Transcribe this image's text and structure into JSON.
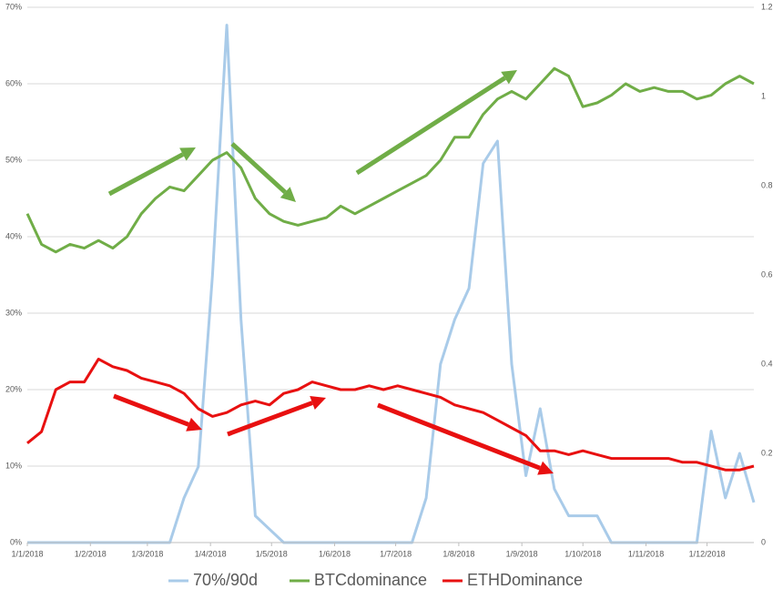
{
  "chart_data": {
    "type": "line",
    "x": [
      "2018-01-01",
      "2018-01-08",
      "2018-01-15",
      "2018-01-22",
      "2018-01-29",
      "2018-02-05",
      "2018-02-12",
      "2018-02-19",
      "2018-02-26",
      "2018-03-05",
      "2018-03-12",
      "2018-03-19",
      "2018-03-26",
      "2018-04-02",
      "2018-04-09",
      "2018-04-16",
      "2018-04-23",
      "2018-04-30",
      "2018-05-07",
      "2018-05-14",
      "2018-05-21",
      "2018-05-28",
      "2018-06-04",
      "2018-06-11",
      "2018-06-18",
      "2018-06-25",
      "2018-07-02",
      "2018-07-09",
      "2018-07-16",
      "2018-07-23",
      "2018-07-30",
      "2018-08-06",
      "2018-08-13",
      "2018-08-20",
      "2018-08-27",
      "2018-09-03",
      "2018-09-10",
      "2018-09-17",
      "2018-09-24",
      "2018-10-01",
      "2018-10-08",
      "2018-10-15",
      "2018-10-22",
      "2018-10-29",
      "2018-11-05",
      "2018-11-12",
      "2018-11-19",
      "2018-11-26",
      "2018-12-03",
      "2018-12-10",
      "2018-12-17",
      "2018-12-24"
    ],
    "series": [
      {
        "name": "70%/90d",
        "color": "#a9cbe9",
        "axis": "y2",
        "values": [
          0,
          0,
          0,
          0,
          0,
          0,
          0,
          0,
          0,
          0,
          0,
          0.1,
          0.17,
          0.6,
          1.16,
          0.5,
          0.06,
          0.03,
          0,
          0,
          0,
          0,
          0,
          0,
          0,
          0,
          0,
          0,
          0.1,
          0.4,
          0.5,
          0.57,
          0.85,
          0.9,
          0.4,
          0.15,
          0.3,
          0.12,
          0.06,
          0.06,
          0.06,
          0,
          0,
          0,
          0,
          0,
          0,
          0,
          0.25,
          0.1,
          0.2,
          0.09
        ]
      },
      {
        "name": "BTCdominance",
        "color": "#70ad47",
        "values": [
          43,
          39,
          38,
          39,
          38.5,
          39.5,
          38.5,
          40,
          43,
          45,
          46.5,
          46,
          48,
          50,
          51,
          49,
          45,
          43,
          42,
          41.5,
          42,
          42.5,
          44,
          43,
          44,
          45,
          46,
          47,
          48,
          50,
          53,
          53,
          56,
          58,
          59,
          58,
          60,
          62,
          61,
          57,
          57.5,
          58.5,
          60,
          59,
          59.5,
          59,
          59,
          58,
          58.5,
          60,
          61,
          60
        ]
      },
      {
        "name": "ETHDominance",
        "color": "#e81010",
        "values": [
          13,
          14.5,
          20,
          21,
          21,
          24,
          23,
          22.5,
          21.5,
          21,
          20.5,
          19.5,
          17.5,
          16.5,
          17,
          18,
          18.5,
          18,
          19.5,
          20,
          21,
          20.5,
          20,
          20,
          20.5,
          20,
          20.5,
          20,
          19.5,
          19,
          18,
          17.5,
          17,
          16,
          15,
          14,
          12,
          12,
          11.5,
          12,
          11.5,
          11,
          11,
          11,
          11,
          11,
          10.5,
          10.5,
          10,
          9.5,
          9.5,
          10
        ]
      }
    ],
    "xlim": [
      "2018-01-01",
      "2018-12-24"
    ],
    "xticks": [
      {
        "value": "2018-01-01",
        "label": "1/1/2018"
      },
      {
        "value": "2018-02-01",
        "label": "1/2/2018"
      },
      {
        "value": "2018-03-01",
        "label": "1/3/2018"
      },
      {
        "value": "2018-04-01",
        "label": "1/4/2018"
      },
      {
        "value": "2018-05-01",
        "label": "1/5/2018"
      },
      {
        "value": "2018-06-01",
        "label": "1/6/2018"
      },
      {
        "value": "2018-07-01",
        "label": "1/7/2018"
      },
      {
        "value": "2018-08-01",
        "label": "1/8/2018"
      },
      {
        "value": "2018-09-01",
        "label": "1/9/2018"
      },
      {
        "value": "2018-10-01",
        "label": "1/10/2018"
      },
      {
        "value": "2018-11-01",
        "label": "1/11/2018"
      },
      {
        "value": "2018-12-01",
        "label": "1/12/2018"
      }
    ],
    "ylim": [
      0,
      70
    ],
    "yticks": [
      {
        "value": 0,
        "label": "0%"
      },
      {
        "value": 10,
        "label": "10%"
      },
      {
        "value": 20,
        "label": "20%"
      },
      {
        "value": 30,
        "label": "30%"
      },
      {
        "value": 40,
        "label": "40%"
      },
      {
        "value": 50,
        "label": "50%"
      },
      {
        "value": 60,
        "label": "60%"
      },
      {
        "value": 70,
        "label": "70%"
      }
    ],
    "y2lim": [
      0,
      1.2
    ],
    "y2ticks": [
      0,
      0.2,
      0.4,
      0.6,
      0.8,
      1,
      1.2
    ],
    "grid": true,
    "legend": "bottom"
  }
}
